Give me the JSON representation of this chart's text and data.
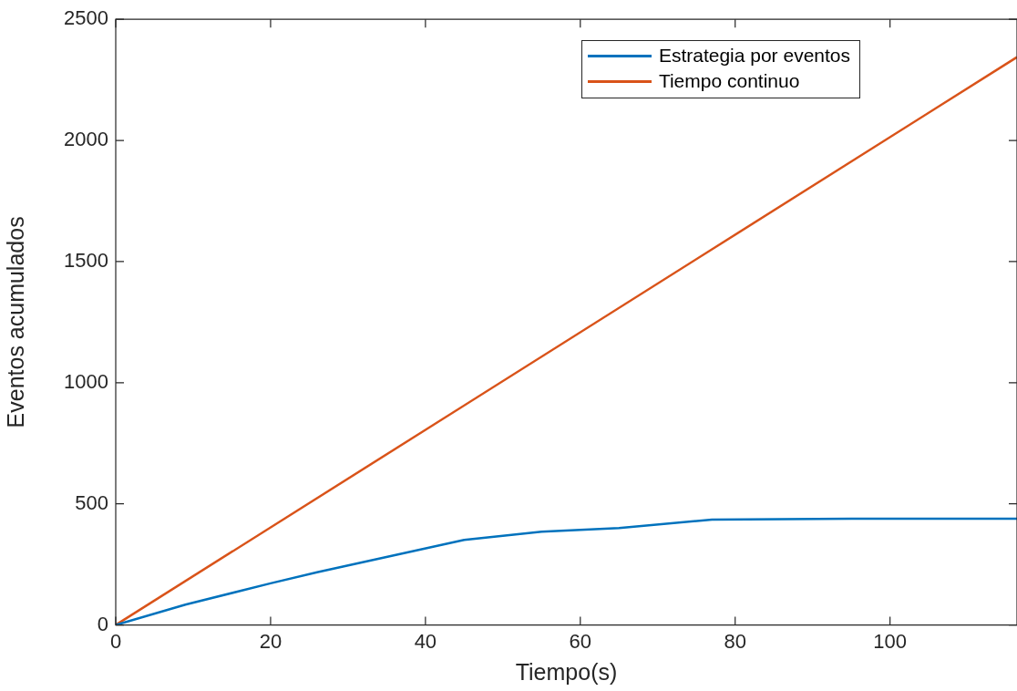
{
  "chart_data": {
    "type": "line",
    "xlabel": "Tiempo(s)",
    "ylabel": "Eventos acumulados",
    "xlim": [
      0,
      116.4
    ],
    "xticks": [
      0,
      20,
      40,
      60,
      80,
      100
    ],
    "ylim": [
      0,
      2500
    ],
    "yticks": [
      0,
      500,
      1000,
      1500,
      2000,
      2500
    ],
    "grid": false,
    "legend": "top right",
    "marker": "none",
    "line_style": "solid",
    "series": [
      {
        "name": "Estrategia por eventos",
        "color": "#0072bd",
        "x": [
          0,
          9,
          20,
          26,
          45,
          55,
          65,
          77,
          95,
          116.4
        ],
        "values": [
          0,
          84,
          172,
          218,
          351,
          385,
          400,
          435,
          439,
          439
        ]
      },
      {
        "name": "Tiempo continuo",
        "color": "#d95319",
        "x": [
          0,
          116.4
        ],
        "values": [
          0,
          2344
        ]
      }
    ]
  }
}
